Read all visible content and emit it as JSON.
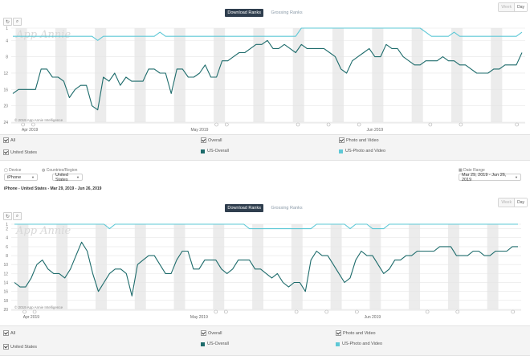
{
  "top": {
    "tabs": [
      {
        "label": "Download Ranks",
        "active": true
      },
      {
        "label": "Grossing Ranks",
        "active": false
      }
    ],
    "period": {
      "week": "Week",
      "day": "Day",
      "selected": "Day"
    },
    "watermark": "App Annie",
    "copyright": "© 2019 App Annie Intelligence",
    "legend": {
      "all": "All",
      "overall": "Overall",
      "photo": "Photo and Video",
      "country": "United States",
      "series_overall": "US-Overall",
      "series_photo": "US-Photo and Video"
    }
  },
  "filters": {
    "device_label": "Device",
    "device_value": "iPhone",
    "country_label": "Countries/Region",
    "country_value": "United States",
    "date_label": "Date Range",
    "date_value": "Mar 29, 2019 - Jun 26, 2019",
    "caption": "iPhone - United States - Mar 29, 2019 - Jun 26, 2019"
  },
  "bottom": {
    "tabs": [
      {
        "label": "Download Ranks",
        "active": true
      },
      {
        "label": "Grossing Ranks",
        "active": false
      }
    ],
    "period": {
      "week": "Week",
      "day": "Day",
      "selected": "Day"
    },
    "watermark": "App Annie",
    "copyright": "© 2019 App Annie Intelligence",
    "legend": {
      "all": "All",
      "overall": "Overall",
      "photo": "Photo and Video",
      "country": "United States",
      "series_overall": "US-Overall",
      "series_photo": "US-Photo and Video"
    }
  },
  "colors": {
    "overall": "#1d6b6b",
    "photo": "#5ec8d6",
    "weekend": "#ececec",
    "grid": "#e6e6e6"
  },
  "chart_data": [
    {
      "type": "line",
      "x_labels": [
        "Apr 2019",
        "May 2019",
        "Jun 2019"
      ],
      "y_ticks": [
        1,
        4,
        8,
        12,
        16,
        20,
        24
      ],
      "ylim": [
        24,
        1
      ],
      "y_reversed": true,
      "series": [
        {
          "name": "US-Overall",
          "values": [
            17,
            16,
            16,
            16,
            16,
            11,
            11,
            13,
            13,
            14,
            18,
            16,
            15,
            15,
            20,
            21,
            13,
            14,
            12,
            15,
            13,
            14,
            14,
            14,
            11,
            11,
            12,
            12,
            17,
            11,
            11,
            13,
            13,
            12,
            10,
            13,
            13,
            9,
            9,
            8,
            7,
            7,
            6,
            5,
            5,
            4,
            6,
            6,
            5,
            6,
            7,
            5,
            6,
            6,
            6,
            6,
            7,
            8,
            11,
            12,
            9,
            8,
            7,
            6,
            8,
            8,
            5,
            6,
            6,
            8,
            9,
            10,
            10,
            9,
            9,
            9,
            8,
            9,
            9,
            10,
            10,
            11,
            12,
            12,
            12,
            11,
            11,
            10,
            10,
            10,
            7
          ]
        },
        {
          "name": "US-Photo and Video",
          "values": [
            3,
            3,
            3,
            3,
            3,
            3,
            3,
            3,
            3,
            3,
            3,
            3,
            3,
            3,
            3,
            4,
            3,
            3,
            3,
            3,
            3,
            3,
            3,
            3,
            3,
            3,
            2,
            3,
            3,
            3,
            3,
            3,
            3,
            3,
            3,
            3,
            3,
            3,
            3,
            3,
            3,
            3,
            3,
            3,
            3,
            3,
            3,
            3,
            3,
            3,
            3,
            1,
            1,
            1,
            1,
            1,
            1,
            1,
            1,
            1,
            1,
            1,
            1,
            1,
            1,
            1,
            1,
            1,
            1,
            1,
            1,
            1,
            1,
            2,
            3,
            3,
            3,
            3,
            2,
            3,
            3,
            3,
            3,
            3,
            3,
            3,
            3,
            3,
            3,
            3,
            2
          ]
        }
      ]
    },
    {
      "type": "line",
      "x_labels": [
        "Apr 2019",
        "May 2019",
        "Jun 2019"
      ],
      "y_ticks": [
        1,
        2,
        4,
        6,
        8,
        10,
        12,
        14,
        16,
        18,
        20
      ],
      "ylim": [
        20,
        1
      ],
      "y_reversed": true,
      "series": [
        {
          "name": "US-Overall",
          "values": [
            14,
            15,
            15,
            13,
            10,
            9,
            11,
            12,
            12,
            13,
            11,
            8,
            5,
            7,
            12,
            16,
            14,
            12,
            11,
            11,
            12,
            17,
            10,
            9,
            8,
            8,
            10,
            12,
            12,
            9,
            7,
            7,
            11,
            11,
            9,
            9,
            9,
            11,
            12,
            11,
            9,
            9,
            9,
            11,
            11,
            12,
            13,
            12,
            14,
            15,
            14,
            14,
            16,
            9,
            7,
            8,
            8,
            10,
            12,
            14,
            13,
            9,
            7,
            8,
            8,
            10,
            12,
            11,
            9,
            9,
            8,
            8,
            7,
            7,
            7,
            7,
            6,
            6,
            6,
            8,
            8,
            8,
            7,
            7,
            8,
            8,
            7,
            7,
            7,
            6,
            6
          ]
        },
        {
          "name": "US-Photo and Video",
          "values": [
            1,
            1,
            1,
            1,
            1,
            1,
            1,
            1,
            1,
            1,
            1,
            1,
            1,
            1,
            1,
            1,
            1,
            2,
            1,
            1,
            1,
            1,
            1,
            1,
            1,
            1,
            1,
            1,
            1,
            1,
            1,
            1,
            1,
            1,
            1,
            1,
            1,
            1,
            1,
            1,
            1,
            1,
            2,
            2,
            2,
            2,
            2,
            2,
            2,
            2,
            2,
            2,
            2,
            2,
            1,
            1,
            1,
            1,
            1,
            1,
            2,
            1,
            1,
            1,
            2,
            2,
            2,
            1,
            1,
            1,
            1,
            1,
            1,
            1,
            1,
            1,
            1,
            1,
            1,
            1,
            1,
            1,
            1,
            1,
            1,
            1,
            1,
            1,
            1,
            1,
            1
          ]
        }
      ]
    }
  ]
}
